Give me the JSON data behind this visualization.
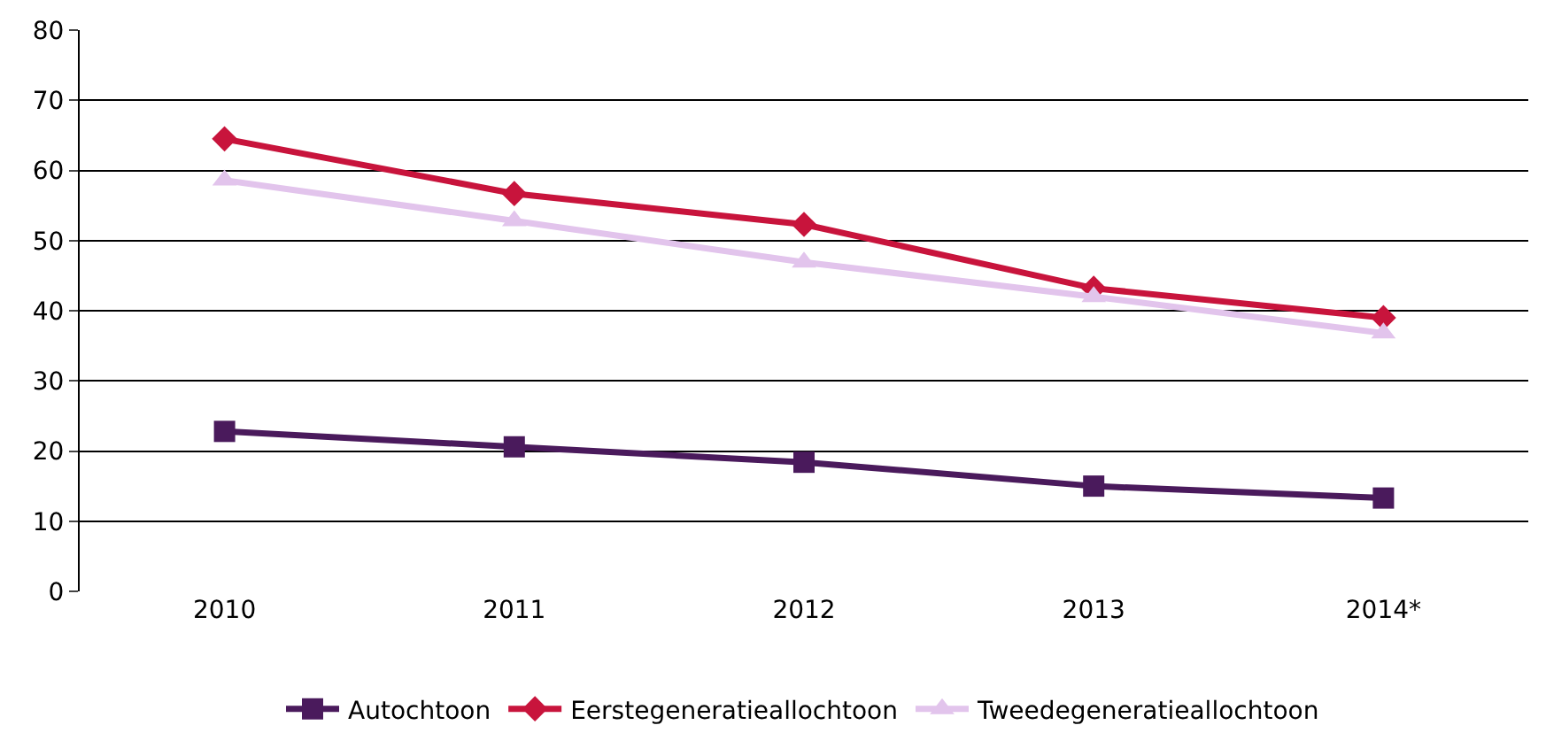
{
  "chart_data": {
    "type": "line",
    "categories": [
      "2010",
      "2011",
      "2012",
      "2013",
      "2014*"
    ],
    "series": [
      {
        "name": "Autochtoon",
        "color": "#4a1a5c",
        "marker": "square",
        "values": [
          22.8,
          20.6,
          18.4,
          15.0,
          13.3
        ]
      },
      {
        "name": "Eerstegeneratieallochtoon",
        "color": "#c8143c",
        "marker": "diamond",
        "values": [
          64.5,
          56.7,
          52.3,
          43.2,
          39.0
        ]
      },
      {
        "name": "Tweedegeneratieallochtoon",
        "color": "#e2c4ec",
        "marker": "triangle",
        "values": [
          58.6,
          52.8,
          46.9,
          42.0,
          36.8
        ]
      }
    ],
    "ylim": [
      0,
      80
    ],
    "yticks": [
      0,
      10,
      20,
      30,
      40,
      50,
      60,
      70,
      80
    ],
    "grid": "y",
    "legend": "bottom",
    "line_style": "solid"
  }
}
